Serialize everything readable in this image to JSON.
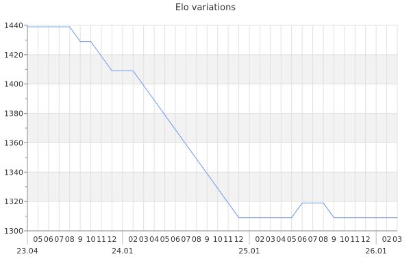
{
  "chart_data": {
    "type": "line",
    "title": "Elo variations",
    "xlabel": "",
    "ylabel": "",
    "ylim": [
      1300,
      1440
    ],
    "yticks": [
      1300,
      1320,
      1340,
      1360,
      1380,
      1400,
      1420,
      1440
    ],
    "grid": true,
    "x_tick_labels": [
      "23.04",
      "05",
      "06",
      "07",
      "08",
      "9",
      "10",
      "11",
      "12",
      "24.01",
      "02",
      "03",
      "04",
      "05",
      "06",
      "07",
      "08",
      "9",
      "10",
      "11",
      "12",
      "25.01",
      "02",
      "03",
      "04",
      "05",
      "06",
      "07",
      "08",
      "9",
      "10",
      "11",
      "12",
      "26.01",
      "02",
      "03"
    ],
    "series": [
      {
        "color": "#6a9bf0",
        "points": [
          [
            0,
            1439
          ],
          [
            4,
            1439
          ],
          [
            5,
            1429
          ],
          [
            6,
            1429
          ],
          [
            8,
            1409
          ],
          [
            10,
            1409
          ],
          [
            20,
            1309
          ],
          [
            25,
            1309
          ],
          [
            26,
            1319
          ],
          [
            28,
            1319
          ],
          [
            29,
            1309
          ],
          [
            35,
            1309
          ]
        ]
      }
    ],
    "band_color": "#f2f2f2",
    "grid_color": "#e0e0e0"
  }
}
